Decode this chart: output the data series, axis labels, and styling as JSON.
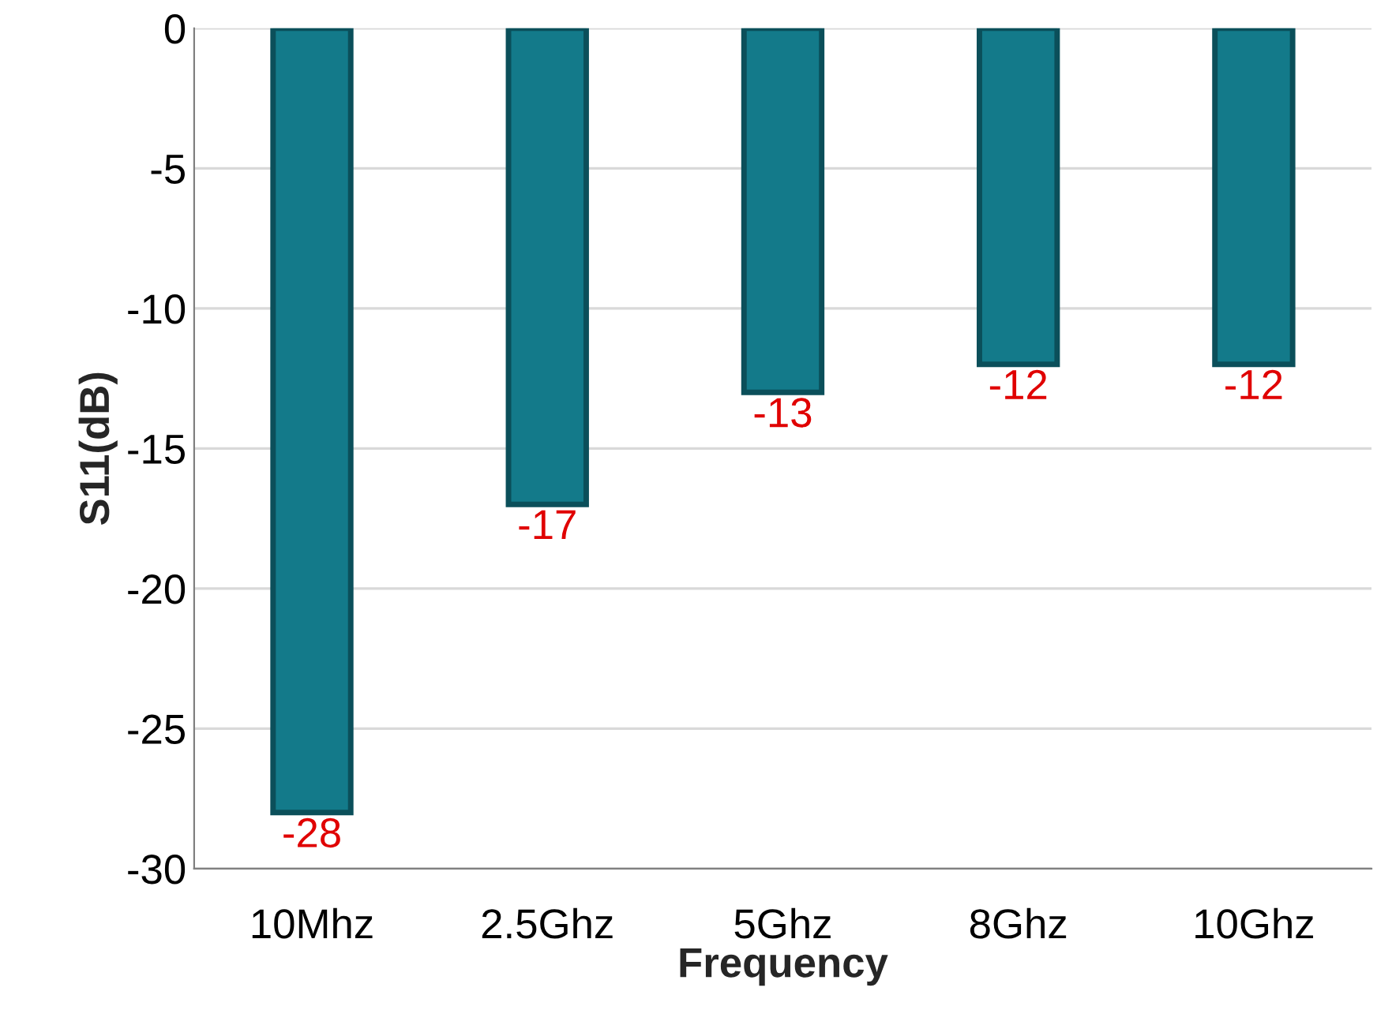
{
  "chart_data": {
    "type": "bar",
    "xlabel": "Frequency",
    "ylabel": "S11(dB)",
    "categories": [
      "10Mhz",
      "2.5Ghz",
      "5Ghz",
      "8Ghz",
      "10Ghz"
    ],
    "values": [
      -28,
      -17,
      -13,
      -12,
      -12
    ],
    "color": "#137a8a",
    "ylim": [
      -30,
      0
    ],
    "yticks": [
      -30,
      -25,
      -20,
      -15,
      -10,
      -5,
      0
    ],
    "grid": "y",
    "data_labels": true
  }
}
